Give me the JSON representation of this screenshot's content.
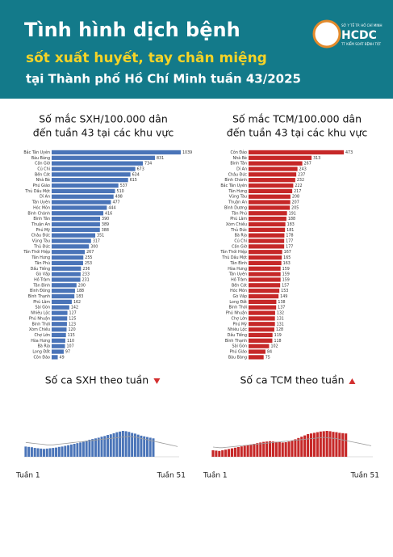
{
  "header": {
    "title": "Tình hình dịch bệnh",
    "subtitle": "sốt xuất huyết, tay chân miệng",
    "subtitle2": "tại Thành phố Hồ Chí Minh tuần 43/2025",
    "logo": "HCDC",
    "logo_top": "SỞ Y TẾ TP. HỒ CHÍ MINH",
    "logo_bottom": "TT KIỂM SOÁT BỆNH TẬT"
  },
  "chart_data": [
    {
      "type": "hbar",
      "title": "Số mắc SXH/100.000 dân",
      "subtitle": "đến tuần 43 tại các khu vực",
      "color": "#4a74b8",
      "categories": [
        "Bắc Tân Uyên",
        "Bàu Bàng",
        "Cần Giờ",
        "Củ Chi",
        "Bến Cát",
        "Nhà Bè",
        "Phú Giáo",
        "Thủ Dầu Một",
        "Dĩ An",
        "Tân Uyên",
        "Hóc Môn",
        "Bình Chánh",
        "Bình Tân",
        "Thuận An",
        "Phú Mỹ",
        "Châu Đức",
        "Vũng Tàu",
        "Thủ Đức",
        "Tân Thới Hiệp",
        "Tân Hưng",
        "Tân Phú",
        "Dầu Tiếng",
        "Gò Vấp",
        "Hồ Tràm",
        "Tân Bình",
        "Bình Đông",
        "Bình Thạnh",
        "Phú Lâm",
        "Sài Gòn",
        "Nhiêu Lộc",
        "Phú Nhuận",
        "Bình Thới",
        "Xóm Chiếu",
        "Chợ Lớn",
        "Hòa Hưng",
        "Bà Rịa",
        "Long Đất",
        "Côn Đảo"
      ],
      "values": [
        1039,
        831,
        734,
        673,
        634,
        615,
        537,
        510,
        498,
        477,
        444,
        416,
        390,
        389,
        388,
        351,
        317,
        300,
        267,
        255,
        253,
        236,
        233,
        231,
        200,
        188,
        183,
        162,
        142,
        127,
        125,
        123,
        120,
        115,
        110,
        107,
        97,
        49
      ]
    },
    {
      "type": "hbar",
      "title": "Số mắc TCM/100.000 dân",
      "subtitle": "đến tuần 43 tại các khu vực",
      "color": "#c62828",
      "categories": [
        "Côn Đảo",
        "Nhà Bè",
        "Bình Tân",
        "Dĩ An",
        "Châu Đức",
        "Bình Chánh",
        "Bắc Tân Uyên",
        "Tân Hưng",
        "Vũng Tàu",
        "Thuận An",
        "Bình Dương",
        "Tân Phú",
        "Phú Lâm",
        "Xóm Chiếu",
        "Thủ Đức",
        "Bà Rịa",
        "Củ Chi",
        "Cần Giờ",
        "Tân Thới Hiệp",
        "Thủ Dầu Một",
        "Tân Bình",
        "Hòa Hưng",
        "Tân Uyên",
        "Hồ Tràm",
        "Bến Cát",
        "Hóc Môn",
        "Gò Vấp",
        "Long Đất",
        "Bình Thới",
        "Phú Nhuận",
        "Chợ Lớn",
        "Phú Mỹ",
        "Nhiêu Lộc",
        "Dầu Tiếng",
        "Bình Thạnh",
        "Sài Gòn",
        "Phú Giáo",
        "Bàu Bàng"
      ],
      "values": [
        473,
        313,
        267,
        243,
        237,
        232,
        222,
        217,
        208,
        207,
        205,
        191,
        188,
        183,
        181,
        178,
        177,
        177,
        167,
        165,
        163,
        159,
        159,
        159,
        157,
        153,
        149,
        138,
        137,
        132,
        131,
        131,
        128,
        119,
        118,
        102,
        84,
        75
      ]
    },
    {
      "type": "weekly",
      "title": "Số ca SXH theo tuần",
      "trend": "down",
      "color": "#4a74b8",
      "line_color": "#9e9e9e",
      "x_first": "Tuần 1",
      "x_last": "Tuần 51",
      "values": [
        300,
        290,
        280,
        260,
        250,
        240,
        230,
        240,
        250,
        260,
        270,
        290,
        300,
        320,
        340,
        360,
        380,
        400,
        420,
        440,
        470,
        500,
        520,
        540,
        560,
        590,
        610,
        640,
        660,
        690,
        720,
        740,
        760,
        750,
        730,
        700,
        680,
        650,
        620,
        600,
        580,
        560,
        540
      ],
      "line": [
        420,
        410,
        400,
        390,
        380,
        370,
        360,
        350,
        350,
        350,
        360,
        370,
        380,
        390,
        400,
        410,
        420,
        430,
        440,
        450,
        460,
        470,
        480,
        490,
        500,
        510,
        520,
        530,
        540,
        550,
        560,
        570,
        580,
        590,
        600,
        590,
        580,
        560,
        540,
        520,
        500,
        480,
        460,
        440,
        420,
        400,
        380,
        360,
        340,
        320,
        300
      ]
    },
    {
      "type": "weekly",
      "title": "Số ca TCM theo tuần",
      "trend": "up",
      "color": "#c62828",
      "line_color": "#9e9e9e",
      "x_first": "Tuần 1",
      "x_last": "Tuần 51",
      "values": [
        200,
        190,
        180,
        200,
        220,
        240,
        260,
        280,
        300,
        320,
        340,
        360,
        380,
        400,
        420,
        440,
        460,
        470,
        480,
        470,
        460,
        450,
        440,
        450,
        470,
        500,
        540,
        580,
        620,
        660,
        700,
        720,
        740,
        760,
        780,
        790,
        800,
        790,
        770,
        760,
        740,
        730,
        720
      ],
      "line": [
        300,
        290,
        280,
        280,
        290,
        300,
        310,
        320,
        330,
        340,
        350,
        360,
        370,
        380,
        390,
        400,
        410,
        420,
        430,
        440,
        450,
        460,
        470,
        480,
        490,
        500,
        510,
        520,
        530,
        540,
        550,
        560,
        570,
        580,
        590,
        600,
        590,
        580,
        570,
        560,
        540,
        520,
        500,
        480,
        460,
        440,
        420,
        400,
        380,
        360,
        340
      ]
    }
  ]
}
